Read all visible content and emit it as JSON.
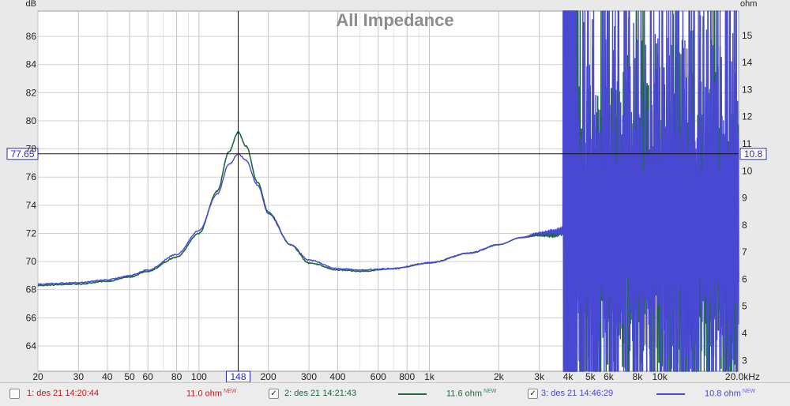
{
  "chart_data": {
    "type": "line",
    "title": "All Impedance",
    "y_left_unit": "dB",
    "y_right_unit": "ohm",
    "x_scale": "log",
    "xlim": [
      20,
      22000
    ],
    "ylim_left": [
      62.2,
      87.8
    ],
    "ylim_right": [
      2.6,
      15.9
    ],
    "x_ticks": [
      {
        "value": 20,
        "label": "20"
      },
      {
        "value": 30,
        "label": "30"
      },
      {
        "value": 40,
        "label": "40"
      },
      {
        "value": 50,
        "label": "50"
      },
      {
        "value": 60,
        "label": "60"
      },
      {
        "value": 80,
        "label": "80"
      },
      {
        "value": 100,
        "label": "100"
      },
      {
        "value": 200,
        "label": "200"
      },
      {
        "value": 300,
        "label": "300"
      },
      {
        "value": 400,
        "label": "400"
      },
      {
        "value": 600,
        "label": "600"
      },
      {
        "value": 800,
        "label": "800"
      },
      {
        "value": 1000,
        "label": "1k"
      },
      {
        "value": 2000,
        "label": "2k"
      },
      {
        "value": 3000,
        "label": "3k"
      },
      {
        "value": 4000,
        "label": "4k"
      },
      {
        "value": 5000,
        "label": "5k"
      },
      {
        "value": 6000,
        "label": "6k"
      },
      {
        "value": 8000,
        "label": "8k"
      },
      {
        "value": 10000,
        "label": "10k"
      },
      {
        "value": 20000,
        "label": "20.0kHz"
      }
    ],
    "y_left_ticks": [
      "64",
      "66",
      "68",
      "70",
      "72",
      "74",
      "76",
      "78",
      "80",
      "82",
      "84",
      "86"
    ],
    "y_right_ticks": [
      "3",
      "4",
      "5",
      "6",
      "7",
      "8",
      "9",
      "10",
      "11",
      "12",
      "13",
      "14",
      "15"
    ],
    "cursor": {
      "x": 148,
      "x_label": "148",
      "y_left": 77.65,
      "y_left_label": "77.65",
      "y_right_label": "10.8"
    },
    "grid": true,
    "series": [
      {
        "name": "2: des 21 14:21:43",
        "color": "#1c6b3c",
        "unit": "dB",
        "x": [
          20,
          30,
          40,
          50,
          60,
          80,
          100,
          120,
          135,
          148,
          160,
          180,
          200,
          250,
          300,
          400,
          500,
          700,
          1000,
          1500,
          2000,
          2500,
          3000,
          3500,
          3800
        ],
        "y": [
          68.3,
          68.4,
          68.6,
          68.9,
          69.3,
          70.3,
          72.0,
          75.0,
          77.8,
          79.2,
          78.2,
          75.6,
          73.5,
          71.2,
          69.9,
          69.4,
          69.3,
          69.5,
          69.9,
          70.6,
          71.2,
          71.7,
          71.9,
          71.9,
          72.2
        ]
      },
      {
        "name": "3: des 21 14:46:29",
        "color": "#4848d2",
        "unit": "dB",
        "x": [
          20,
          30,
          40,
          50,
          60,
          80,
          100,
          120,
          135,
          148,
          160,
          180,
          200,
          250,
          300,
          400,
          500,
          700,
          1000,
          1500,
          2000,
          2500,
          3000,
          3500,
          3800
        ],
        "y": [
          68.4,
          68.5,
          68.7,
          69.0,
          69.4,
          70.5,
          72.2,
          74.8,
          76.9,
          77.65,
          77.2,
          75.4,
          73.4,
          71.2,
          70.1,
          69.5,
          69.4,
          69.5,
          69.9,
          70.6,
          71.2,
          71.7,
          72.0,
          72.1,
          72.2
        ]
      }
    ]
  },
  "legend": [
    {
      "checked": false,
      "name": "1: des 21 14:20:44",
      "value": "11.0 ohm",
      "badge": "NEW",
      "color": "#c41818"
    },
    {
      "checked": true,
      "name": "2: des 21 14:21:43",
      "value": "11.6 ohm",
      "badge": "NEW",
      "color": "#1c6b3c"
    },
    {
      "checked": true,
      "name": "3: des 21 14:46:29",
      "value": "10.8 ohm",
      "badge": "NEW",
      "color": "#4848d2"
    }
  ]
}
